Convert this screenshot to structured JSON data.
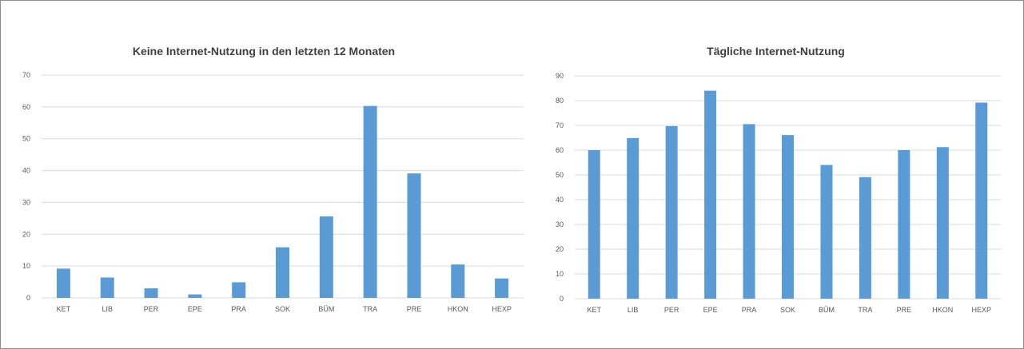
{
  "colors": {
    "bar": "#5b9bd5",
    "grid": "#d9d9d9",
    "text": "#595959",
    "title": "#404040"
  },
  "chart_data": [
    {
      "type": "bar",
      "title": "Keine Internet-Nutzung in den letzten 12 Monaten",
      "xlabel": "",
      "ylabel": "",
      "categories": [
        "KET",
        "LIB",
        "PER",
        "EPE",
        "PRA",
        "SOK",
        "BÜM",
        "TRA",
        "PRE",
        "HKON",
        "HEXP"
      ],
      "values": [
        9.2,
        6.4,
        3.0,
        1.1,
        4.9,
        15.9,
        25.6,
        60.3,
        39.1,
        10.5,
        6.1
      ],
      "ylim": [
        0,
        70
      ],
      "yticks": [
        "0",
        "10",
        "20",
        "30",
        "40",
        "50",
        "60",
        "70"
      ],
      "grid": true,
      "legend": "none"
    },
    {
      "type": "bar",
      "title": "Tägliche Internet-Nutzung",
      "xlabel": "",
      "ylabel": "",
      "categories": [
        "KET",
        "LIB",
        "PER",
        "EPE",
        "PRA",
        "SOK",
        "BÜM",
        "TRA",
        "PRE",
        "HKON",
        "HEXP"
      ],
      "values": [
        60.0,
        64.9,
        69.7,
        84.0,
        70.5,
        66.1,
        54.0,
        49.1,
        60.0,
        61.2,
        79.2
      ],
      "ylim": [
        0,
        90
      ],
      "yticks": [
        "0",
        "10",
        "20",
        "30",
        "40",
        "50",
        "60",
        "70",
        "80",
        "90"
      ],
      "grid": true,
      "legend": "none"
    }
  ]
}
